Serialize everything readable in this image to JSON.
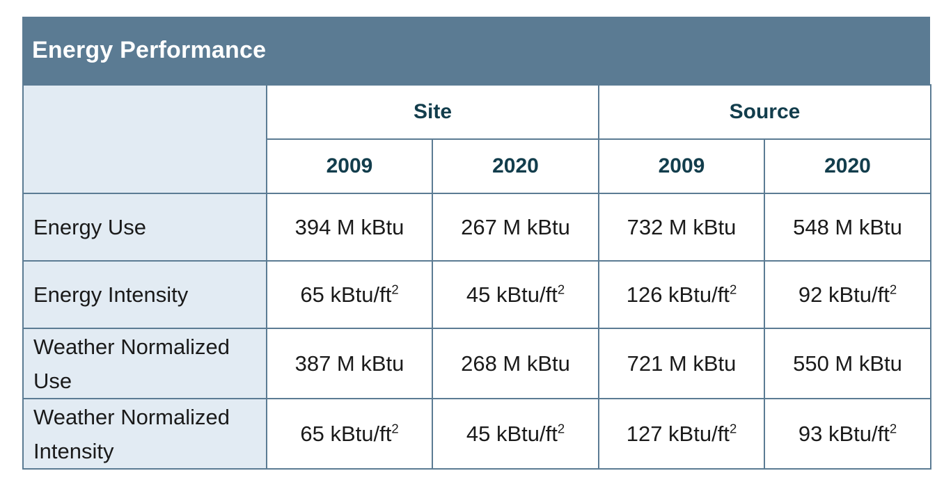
{
  "title": "Energy Performance",
  "groups": {
    "site": "Site",
    "source": "Source"
  },
  "years": {
    "site_a": "2009",
    "site_b": "2020",
    "source_a": "2009",
    "source_b": "2020"
  },
  "rows": [
    {
      "label": "Energy Use",
      "site_2009": "394 M kBtu",
      "site_2020": "267 M kBtu",
      "source_2009": "732 M kBtu",
      "source_2020": "548 M kBtu"
    },
    {
      "label": "Energy Intensity",
      "site_2009": "65 kBtu/ft",
      "site_2020": "45 kBtu/ft",
      "source_2009": "126 kBtu/ft",
      "source_2020": "92 kBtu/ft"
    },
    {
      "label": "Weather Normalized Use",
      "site_2009": "387 M kBtu",
      "site_2020": "268 M kBtu",
      "source_2009": "721 M kBtu",
      "source_2020": "550 M kBtu"
    },
    {
      "label": "Weather Normalized Intensity",
      "site_2009": "65 kBtu/ft",
      "site_2020": "45 kBtu/ft",
      "source_2009": "127 kBtu/ft",
      "source_2020": "93 kBtu/ft"
    }
  ],
  "superscript": "2",
  "colors": {
    "header_bg": "#5b7b93",
    "label_bg": "#e2ebf3",
    "heading_text": "#123d4c"
  }
}
